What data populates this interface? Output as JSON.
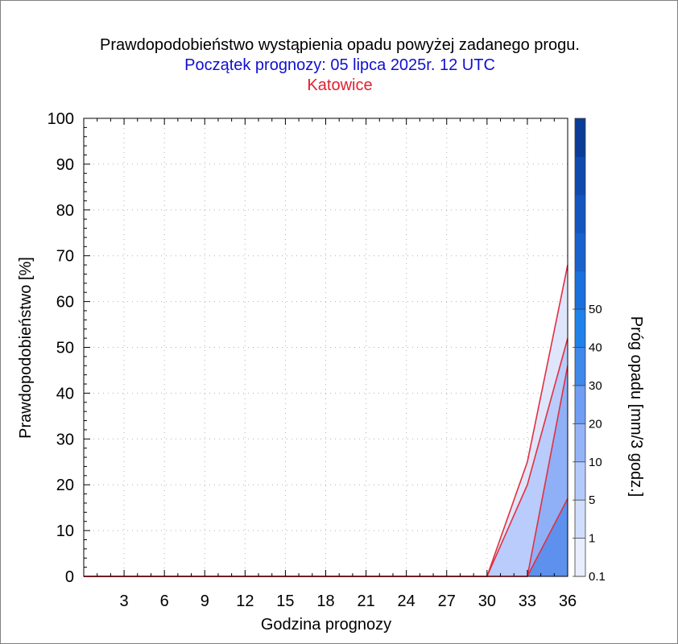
{
  "chart_data": {
    "type": "area",
    "title": "Prawdopodobieństwo wystąpienia opadu powyżej zadanego progu.",
    "subtitle": "Początek prognozy: 05 lipca 2025r. 12 UTC",
    "location": "Katowice",
    "xlabel": "Godzina prognozy",
    "ylabel": "Prawdopodobieństwo [%]",
    "colorbar_label": "Próg opadu [mm/3 godz.]",
    "xlim": [
      0,
      36
    ],
    "ylim": [
      0,
      100
    ],
    "x_ticks": [
      3,
      6,
      9,
      12,
      15,
      18,
      21,
      24,
      27,
      30,
      33,
      36
    ],
    "y_ticks": [
      0,
      10,
      20,
      30,
      40,
      50,
      60,
      70,
      80,
      90,
      100
    ],
    "grid": true,
    "x": [
      0,
      3,
      6,
      9,
      12,
      15,
      18,
      21,
      24,
      27,
      30,
      33,
      36
    ],
    "series": [
      {
        "name": "0.1",
        "color": "#dfe6fb",
        "values": [
          0,
          0,
          0,
          0,
          0,
          0,
          0,
          0,
          0,
          0,
          0,
          25,
          68
        ]
      },
      {
        "name": "1",
        "color": "#b9ccfb",
        "values": [
          0,
          0,
          0,
          0,
          0,
          0,
          0,
          0,
          0,
          0,
          0,
          20,
          52
        ]
      },
      {
        "name": "5",
        "color": "#8fb0f6",
        "values": [
          0,
          0,
          0,
          0,
          0,
          0,
          0,
          0,
          0,
          0,
          0,
          0,
          46
        ]
      },
      {
        "name": "10",
        "color": "#5e90ee",
        "values": [
          0,
          0,
          0,
          0,
          0,
          0,
          0,
          0,
          0,
          0,
          0,
          0,
          17
        ]
      }
    ],
    "colorbar": {
      "labels": [
        "0.1",
        "1",
        "5",
        "10",
        "20",
        "30",
        "40",
        "50"
      ],
      "colors": [
        "#e8eefd",
        "#d0defc",
        "#b4cafa",
        "#94b4f7",
        "#6f9ef2",
        "#3f88ec",
        "#1e82ea",
        "#1a70dc",
        "#1762cc",
        "#1356c0",
        "#0f4aae",
        "#0a3c98"
      ]
    },
    "line_color": "#e03040"
  }
}
